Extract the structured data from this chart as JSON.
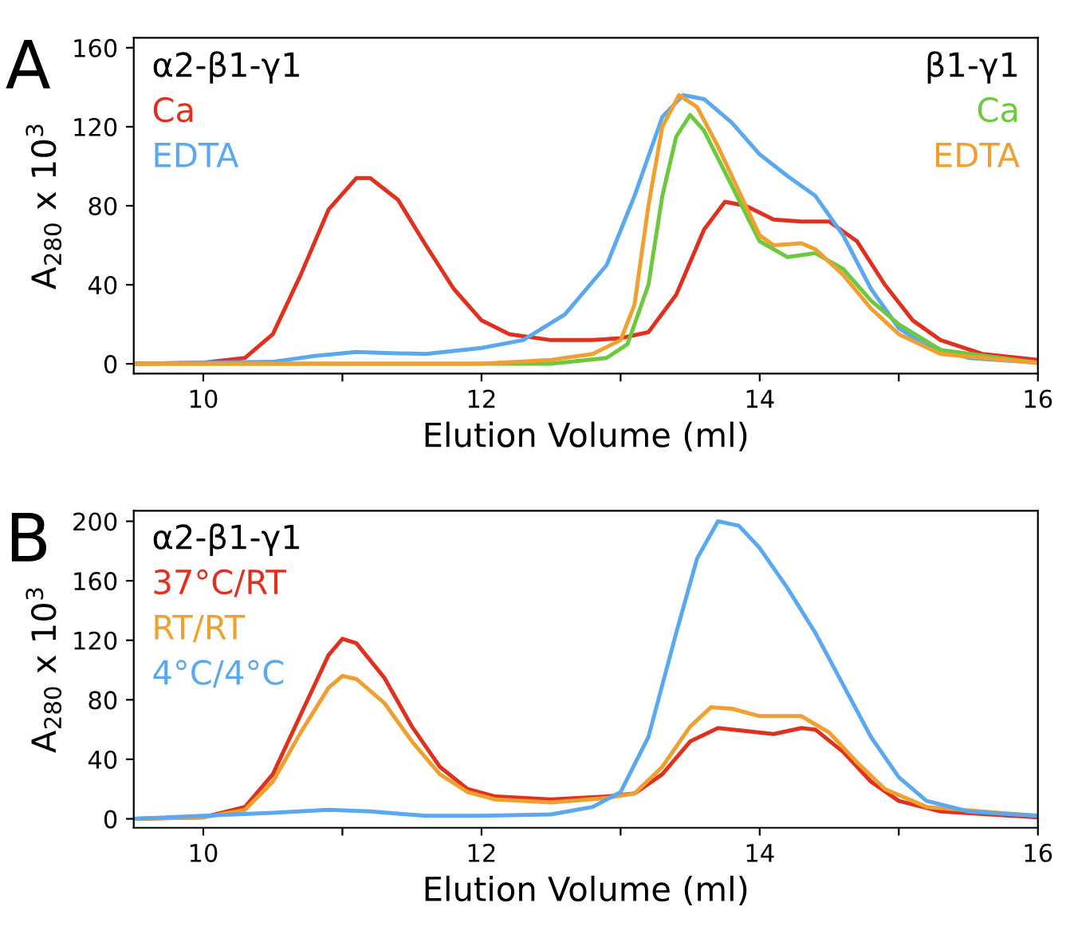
{
  "chart_data": [
    {
      "type": "line",
      "title": "A",
      "xlabel": "Elution Volume (ml)",
      "ylabel": "A$_{280}$ x 10$^{3}$",
      "annotations": [
        "α2-β1-γ1",
        "β1-γ1"
      ],
      "legend": "top left",
      "grid": false,
      "marker": "none",
      "line_style": "solid",
      "xlim": [
        9.5,
        16
      ],
      "xticks": [
        10,
        {
          "value": 11,
          "label": null
        },
        12,
        {
          "value": 13,
          "label": null
        },
        14,
        {
          "value": 15,
          "label": null
        },
        16
      ],
      "ylim": [
        -5,
        165
      ],
      "yticks": [
        0,
        40,
        80,
        120,
        160
      ],
      "series": [
        {
          "name": "Ca",
          "color": "#e0301e",
          "x": [
            9.5,
            10,
            10.3,
            10.5,
            10.7,
            10.9,
            11.1,
            11.2,
            11.4,
            11.6,
            11.8,
            12.0,
            12.2,
            12.5,
            12.8,
            13.0,
            13.2,
            13.4,
            13.6,
            13.75,
            13.9,
            14.1,
            14.3,
            14.5,
            14.7,
            14.9,
            15.1,
            15.3,
            15.6,
            16
          ],
          "values": [
            0,
            0.5,
            3,
            15,
            45,
            78,
            94,
            94,
            83,
            60,
            38,
            22,
            15,
            12,
            12,
            13,
            16,
            35,
            68,
            82,
            80,
            73,
            72,
            72,
            62,
            40,
            22,
            12,
            5,
            2
          ]
        },
        {
          "name": "EDTA",
          "color": "#5aa9f0",
          "x": [
            9.5,
            10.5,
            10.8,
            11.1,
            11.3,
            11.6,
            12.0,
            12.3,
            12.6,
            12.9,
            13.1,
            13.3,
            13.45,
            13.6,
            13.8,
            14.0,
            14.2,
            14.4,
            14.6,
            14.8,
            15.0,
            15.2,
            15.5,
            16
          ],
          "values": [
            0,
            1,
            4,
            6,
            5.5,
            5,
            8,
            12,
            25,
            50,
            85,
            125,
            136,
            134,
            122,
            106,
            95,
            85,
            65,
            38,
            18,
            9,
            3,
            0.5
          ]
        },
        {
          "name": "Ca",
          "color": "#6cc83c",
          "x": [
            9.5,
            12.5,
            12.9,
            13.05,
            13.2,
            13.3,
            13.4,
            13.5,
            13.6,
            13.8,
            14.0,
            14.2,
            14.4,
            14.6,
            14.8,
            15.0,
            15.3,
            16
          ],
          "values": [
            0,
            0,
            3,
            10,
            40,
            85,
            115,
            126,
            118,
            90,
            62,
            54,
            56,
            48,
            32,
            20,
            7,
            0.5
          ]
        },
        {
          "name": "EDTA",
          "color": "#f0a030",
          "x": [
            9.5,
            12.0,
            12.5,
            12.8,
            13.0,
            13.1,
            13.2,
            13.3,
            13.42,
            13.55,
            13.7,
            13.9,
            14.0,
            14.1,
            14.3,
            14.4,
            14.6,
            14.8,
            15.0,
            15.3,
            16
          ],
          "values": [
            0,
            0,
            2,
            5,
            12,
            30,
            80,
            120,
            136,
            130,
            110,
            80,
            65,
            60,
            61,
            58,
            45,
            28,
            15,
            5,
            0.5
          ]
        }
      ]
    },
    {
      "type": "line",
      "title": "B",
      "xlabel": "Elution Volume (ml)",
      "ylabel": "A$_{280}$ x 10$^{3}$",
      "annotations": [
        "α2-β1-γ1"
      ],
      "legend": "top left",
      "grid": false,
      "marker": "none",
      "line_style": "solid",
      "xlim": [
        9.5,
        16
      ],
      "xticks": [
        10,
        {
          "value": 11,
          "label": null
        },
        12,
        {
          "value": 13,
          "label": null
        },
        14,
        {
          "value": 15,
          "label": null
        },
        16
      ],
      "ylim": [
        -6,
        207
      ],
      "yticks": [
        0,
        40,
        80,
        120,
        160,
        200
      ],
      "series": [
        {
          "name": "37°C/RT",
          "color": "#e0301e",
          "x": [
            9.5,
            10.0,
            10.3,
            10.5,
            10.7,
            10.9,
            11.0,
            11.1,
            11.3,
            11.5,
            11.7,
            11.9,
            12.1,
            12.5,
            12.9,
            13.1,
            13.3,
            13.5,
            13.7,
            13.9,
            14.1,
            14.3,
            14.4,
            14.6,
            14.8,
            15.0,
            15.3,
            16
          ],
          "values": [
            0,
            1,
            8,
            30,
            70,
            110,
            121,
            118,
            95,
            62,
            35,
            20,
            15,
            13,
            15,
            17,
            30,
            52,
            61,
            59,
            57,
            61,
            60,
            45,
            25,
            12,
            5,
            1
          ]
        },
        {
          "name": "RT/RT",
          "color": "#f0a030",
          "x": [
            9.5,
            10.0,
            10.3,
            10.5,
            10.7,
            10.9,
            11.0,
            11.1,
            11.3,
            11.5,
            11.7,
            11.9,
            12.1,
            12.5,
            12.9,
            13.1,
            13.3,
            13.5,
            13.65,
            13.8,
            14.0,
            14.2,
            14.3,
            14.5,
            14.7,
            14.9,
            15.2,
            16
          ],
          "values": [
            0,
            1,
            6,
            25,
            58,
            88,
            96,
            94,
            78,
            52,
            30,
            18,
            13,
            11,
            14,
            17,
            35,
            62,
            75,
            74,
            69,
            69,
            69,
            58,
            38,
            20,
            8,
            2
          ]
        },
        {
          "name": "4°C/4°C",
          "color": "#5aa9f0",
          "x": [
            9.5,
            10.0,
            10.5,
            10.9,
            11.2,
            11.6,
            12.0,
            12.5,
            12.8,
            13.0,
            13.2,
            13.4,
            13.55,
            13.7,
            13.85,
            14.0,
            14.2,
            14.4,
            14.6,
            14.8,
            15.0,
            15.2,
            15.5,
            16
          ],
          "values": [
            0,
            2,
            4,
            6,
            5,
            2,
            2,
            3,
            8,
            18,
            55,
            125,
            175,
            200,
            197,
            182,
            155,
            125,
            90,
            55,
            28,
            12,
            5,
            2
          ]
        }
      ]
    }
  ]
}
